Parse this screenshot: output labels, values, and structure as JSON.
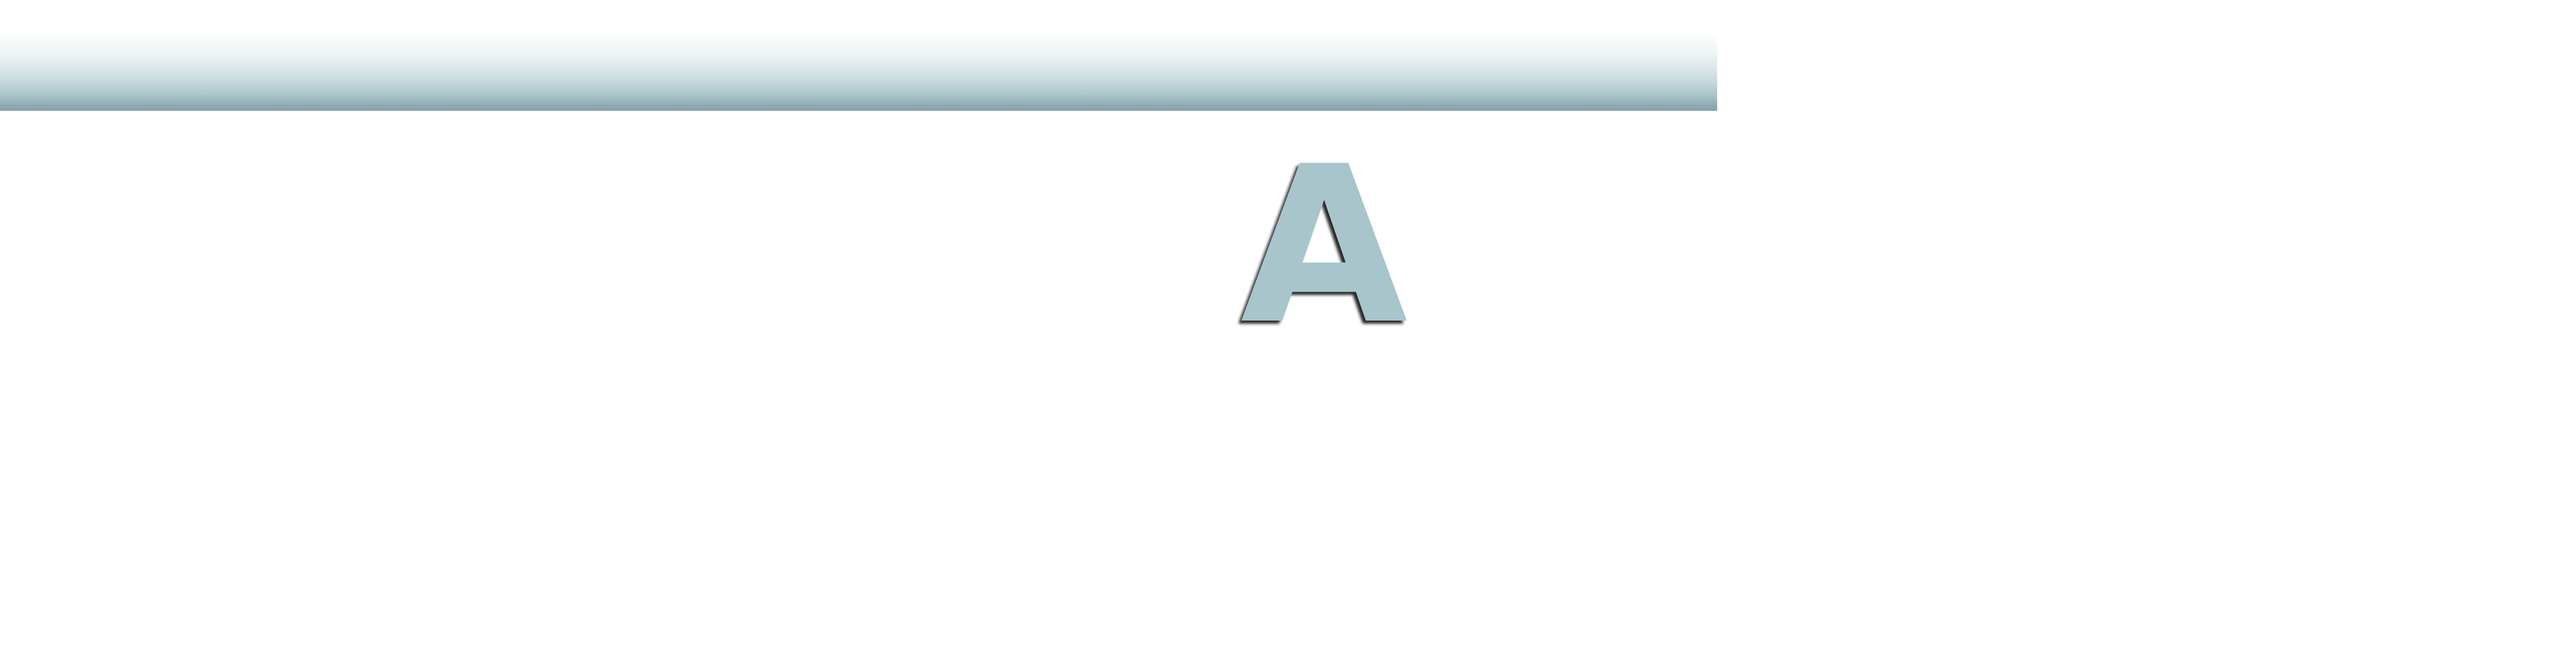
{
  "header": {
    "gradient_colors": [
      "#ffffff",
      "#cfdfe2",
      "#88a3aa"
    ]
  },
  "logo": {
    "letter": "A",
    "fill_color": "#a8c5cc",
    "shadow_color": "#1c2426"
  }
}
